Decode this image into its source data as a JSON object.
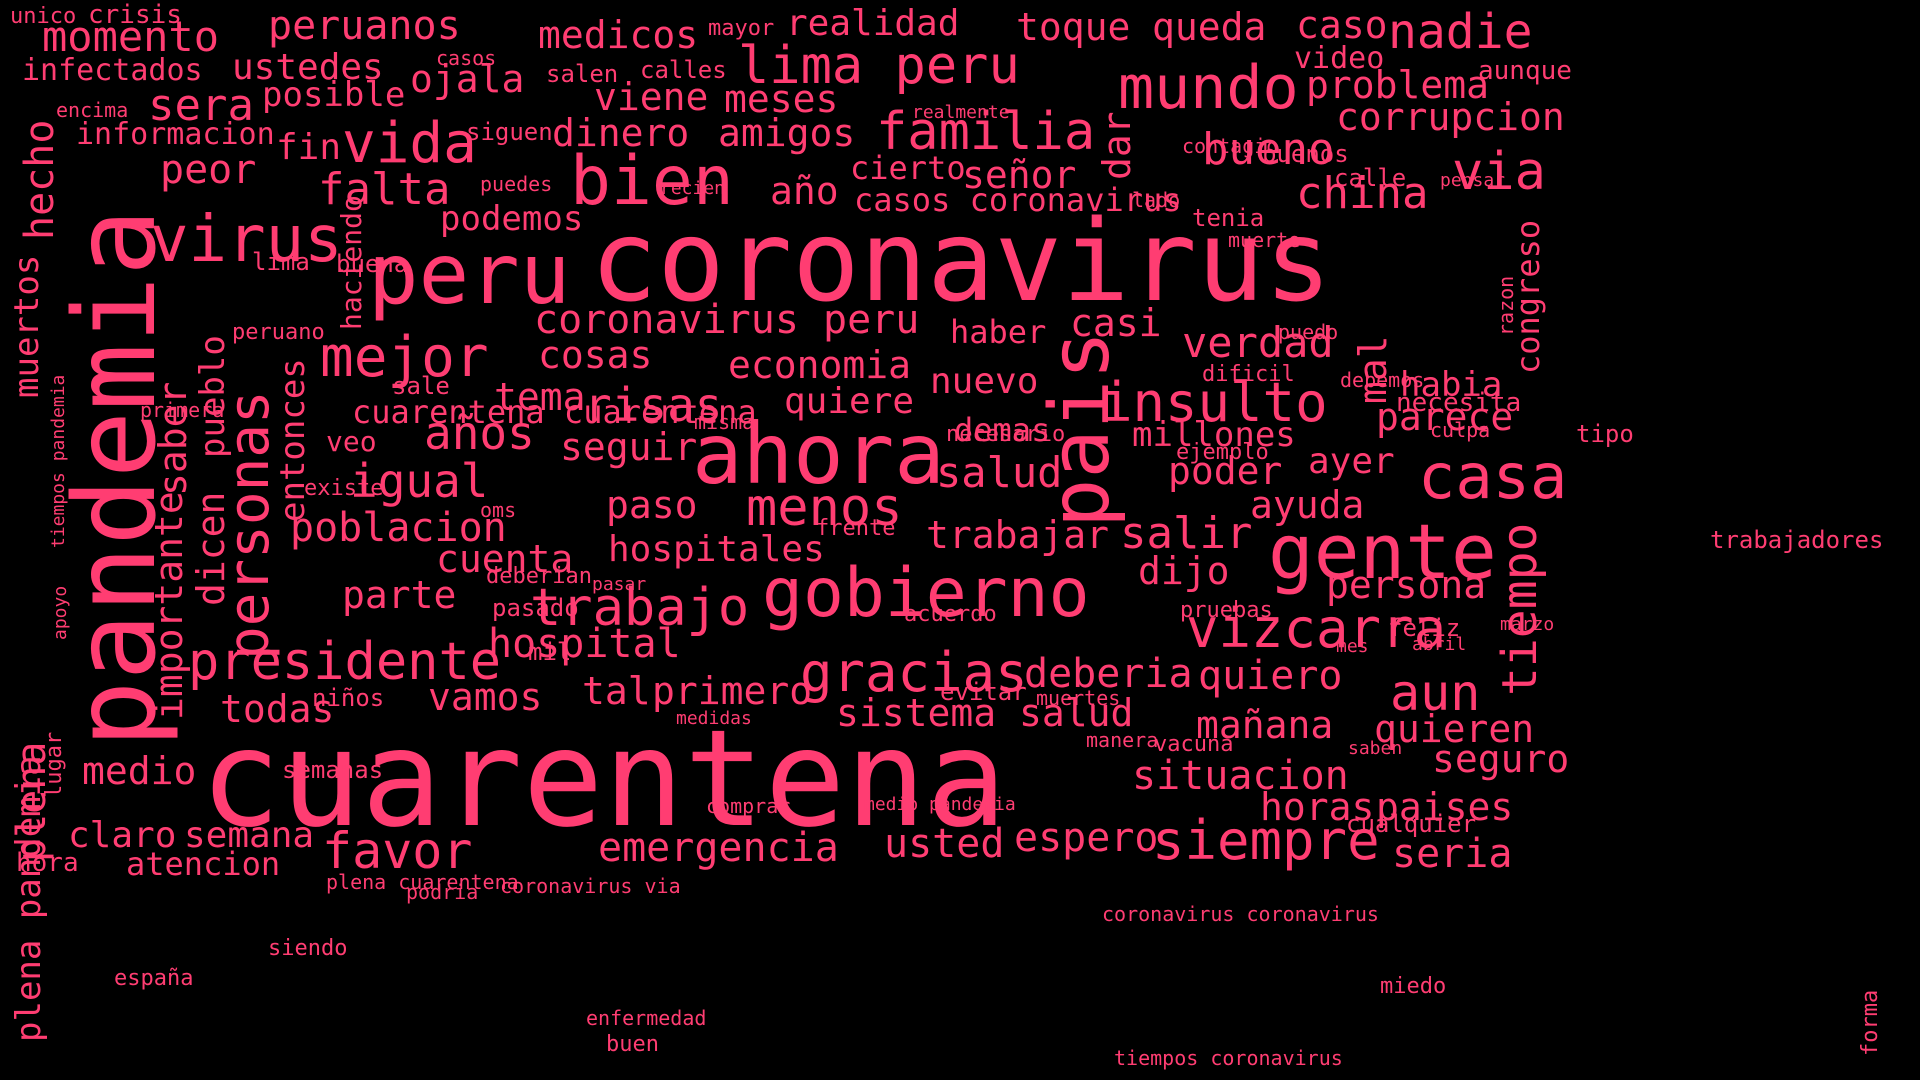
{
  "colors": {
    "background": "#000000",
    "word": "#ff3d72"
  },
  "words": [
    "coronavirus",
    "cuarentena",
    "pandemia",
    "ahora",
    "peru",
    "gobierno",
    "pais",
    "gente",
    "bien",
    "virus",
    "presidente",
    "mejor",
    "trabajo",
    "gracias",
    "personas",
    "vizcarra",
    "insulto",
    "siempre",
    "mundo",
    "casa",
    "familia",
    "lima peru",
    "risas",
    "menos",
    "tiempo",
    "igual",
    "años",
    "aun",
    "vida",
    "falta",
    "salud",
    "salir",
    "situacion",
    "bueno",
    "via",
    "china",
    "verdad",
    "coronavirus peru",
    "poblacion",
    "hospitales",
    "hospital",
    "deberia",
    "quiero",
    "mañana",
    "quieren",
    "seguro",
    "horas",
    "paises",
    "momento",
    "peruanos",
    "realidad",
    "toque",
    "queda",
    "nadie",
    "caso",
    "problema",
    "corrupcion",
    "sistema salud",
    "emergencia",
    "favor",
    "usted",
    "espero",
    "seria",
    "claro",
    "semana",
    "atencion",
    "medio",
    "todas",
    "vamos",
    "tal",
    "primero",
    "parte",
    "cuenta",
    "trabajar",
    "dijo",
    "persona",
    "ayuda",
    "ayer",
    "poder",
    "parece",
    "habia",
    "millones",
    "demas",
    "nuevo",
    "quiere",
    "economia",
    "tema",
    "seguir",
    "paso",
    "cosas",
    "casi",
    "haber",
    "señor",
    "año",
    "cierto",
    "casos coronavirus",
    "dinero",
    "amigos",
    "viene",
    "meses",
    "medicos",
    "ustedes",
    "posible",
    "ojala",
    "sera",
    "peor",
    "fin",
    "podemos",
    "informacion",
    "infectados",
    "hecho",
    "muertos",
    "plena",
    "congreso",
    "mal",
    "dar",
    "cuarentena cuarentena",
    "veo",
    "saber",
    "dicen",
    "pueblo",
    "entonces",
    "importante",
    "haciendo",
    "hora",
    "lugar",
    "unico",
    "crisis",
    "encima",
    "casos",
    "salen",
    "calles",
    "mayor",
    "siguen",
    "puedes",
    "recien",
    "realmente",
    "contagio",
    "buenos",
    "calle",
    "pensar",
    "lado",
    "tenia",
    "muerte",
    "aunque",
    "video",
    "lima",
    "buena",
    "peruano",
    "sale",
    "primera",
    "misma",
    "necesario",
    "ejemplo",
    "dificil",
    "debemos",
    "necesita",
    "culpa",
    "puedo",
    "razon",
    "existe",
    "oms",
    "frente",
    "deberian",
    "pasar",
    "pasado",
    "acuerdo",
    "pruebas",
    "feliz",
    "mes",
    "abril",
    "marzo",
    "mil",
    "niños",
    "medidas",
    "evitar",
    "muertes",
    "manera",
    "vacuna",
    "saben",
    "semanas",
    "medio pandemia",
    "comprar",
    "cualquier",
    "podria",
    "plena cuarentena",
    "coronavirus via",
    "coronavirus coronavirus",
    "siendo",
    "españa",
    "miedo",
    "enfermedad",
    "buen",
    "tiempos coronavirus",
    "forma",
    "tipo",
    "trabajadores",
    "tiempos pandemia",
    "apoyo",
    "plena pandemia"
  ]
}
